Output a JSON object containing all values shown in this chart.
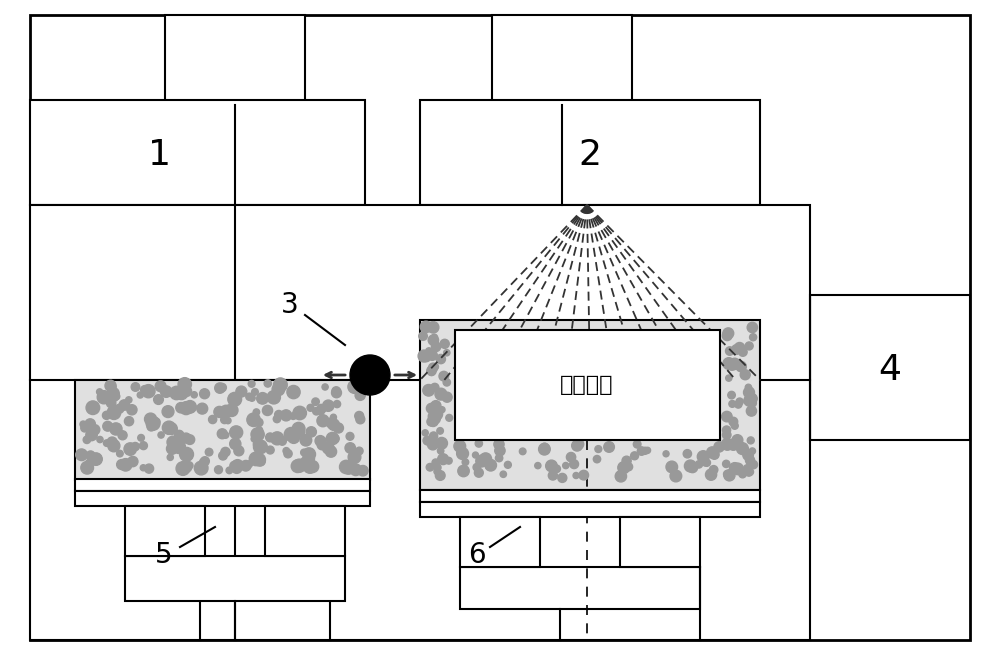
{
  "bg_color": "#ffffff",
  "lc": "#000000",
  "lw": 1.5,
  "fig_w": 10.0,
  "fig_h": 6.58,
  "dpi": 100,
  "label1": "1",
  "label2": "2",
  "label3": "3",
  "label4": "4",
  "label5": "5",
  "label6": "6",
  "forming_text": "成形零件",
  "dot_color": "#999999",
  "beam_color": "#333333"
}
